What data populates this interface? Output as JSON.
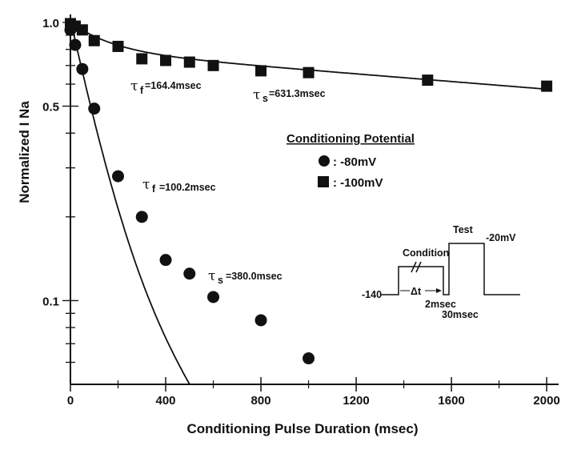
{
  "chart_data": {
    "type": "scatter",
    "xlabel": "Conditioning Pulse Duration (msec)",
    "ylabel": "Normalized I Na",
    "xlim": [
      0,
      2050
    ],
    "ylim": [
      0.05,
      1.0
    ],
    "y_scale": "log",
    "x_ticks": [
      0,
      400,
      800,
      1200,
      1600,
      2000
    ],
    "x_tick_labels": [
      "0",
      "400",
      "800",
      "1200",
      "1600",
      "2000"
    ],
    "y_ticks": [
      0.1,
      0.5,
      1.0
    ],
    "y_tick_labels": [
      "0.1",
      "0.5",
      "1.0"
    ],
    "series": [
      {
        "name": ": -80mV",
        "marker": "circle",
        "x": [
          0,
          20,
          50,
          100,
          200,
          300,
          400,
          500,
          600,
          800,
          1000
        ],
        "y": [
          0.94,
          0.83,
          0.68,
          0.49,
          0.28,
          0.2,
          0.14,
          0.125,
          0.103,
          0.085,
          0.062
        ]
      },
      {
        "name": ": -100mV",
        "marker": "square",
        "x": [
          0,
          20,
          50,
          100,
          200,
          300,
          400,
          500,
          600,
          800,
          1000,
          1500,
          2000
        ],
        "y": [
          0.99,
          0.97,
          0.94,
          0.86,
          0.82,
          0.74,
          0.73,
          0.72,
          0.7,
          0.67,
          0.66,
          0.62,
          0.59
        ]
      }
    ],
    "annotations": {
      "tau_f_100": "=164.4msec",
      "tau_s_100": "=631.3msec",
      "tau_f_80": "=100.2msec",
      "tau_s_80": "=380.0msec",
      "tau_symbol": "τ",
      "sub_f": "f",
      "sub_s": "s"
    },
    "legend": {
      "title": "Conditioning Potential",
      "placement": "center-right"
    },
    "inset": {
      "condition_label": "Condition",
      "test_label": "Test",
      "v_hold": "-140",
      "v_test": "-20mV",
      "delta_t": "Δt",
      "gap": "2msec",
      "test_duration": "30msec"
    }
  }
}
